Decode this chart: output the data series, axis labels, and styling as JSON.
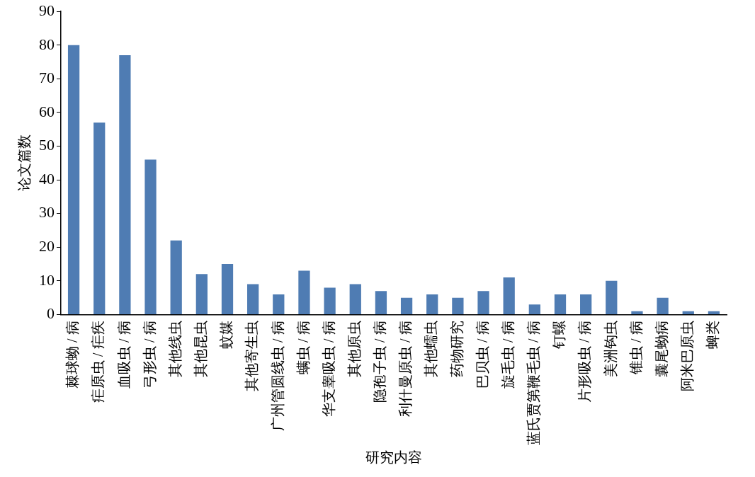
{
  "chart_data": {
    "type": "bar",
    "xlabel": "研究内容",
    "ylabel": "论文篇数",
    "categories": [
      "棘球蚴 / 病",
      "疟原虫 / 疟疾",
      "血吸虫 / 病",
      "弓形虫 / 病",
      "其他线虫",
      "其他昆虫",
      "蚊媒",
      "其他寄生虫",
      "广州管圆线虫 / 病",
      "螨虫 / 病",
      "华支睾吸虫 / 病",
      "其他原虫",
      "隐孢子虫 / 病",
      "利什曼原虫 / 病",
      "其他蠕虫",
      "药物研究",
      "巴贝虫 / 病",
      "旋毛虫 / 病",
      "蓝氏贾第鞭毛虫 / 病",
      "钉螺",
      "片形吸虫 / 病",
      "美洲钩虫",
      "锥虫 / 病",
      "囊尾蚴病",
      "阿米巴原虫",
      "蜱类"
    ],
    "values": [
      80,
      57,
      77,
      46,
      22,
      12,
      15,
      9,
      6,
      13,
      8,
      9,
      7,
      5,
      6,
      5,
      7,
      11,
      3,
      6,
      6,
      10,
      1,
      5,
      1,
      1
    ],
    "color": "#4f7cb3",
    "ylim": [
      0,
      90
    ],
    "yticks": [
      0,
      10,
      20,
      30,
      40,
      50,
      60,
      70,
      80,
      90
    ],
    "grid": false,
    "legend": false
  }
}
